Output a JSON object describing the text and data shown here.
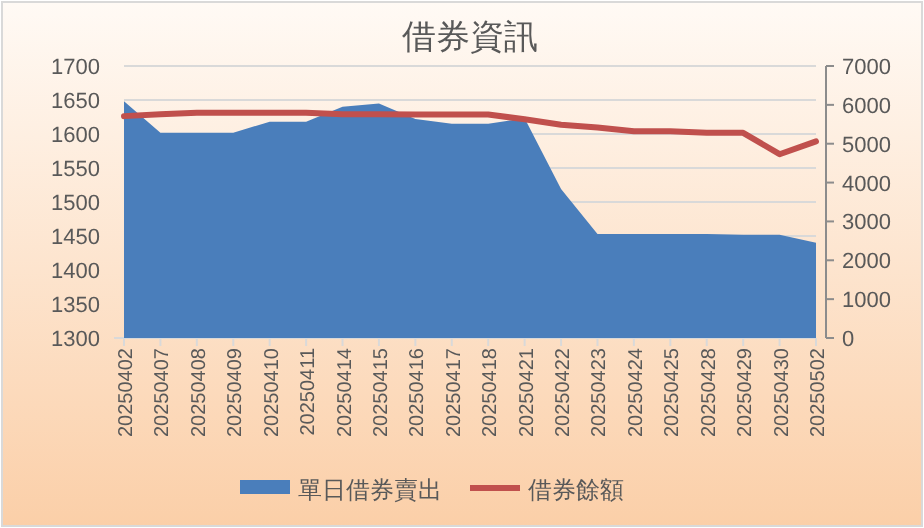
{
  "chart_data": {
    "type": "area",
    "title": "借券資訊",
    "categories": [
      "20250402",
      "20250407",
      "20250408",
      "20250409",
      "20250410",
      "20250411",
      "20250414",
      "20250415",
      "20250416",
      "20250417",
      "20250418",
      "20250421",
      "20250422",
      "20250423",
      "20250424",
      "20250425",
      "20250428",
      "20250429",
      "20250430",
      "20250502"
    ],
    "series": [
      {
        "name": "單日借券賣出",
        "color": "#4a7ebb",
        "values": [
          1648,
          1602,
          1602,
          1602,
          1618,
          1618,
          1640,
          1645,
          1622,
          1615,
          1615,
          1623,
          1519,
          1453,
          1453,
          1453,
          1453,
          1452,
          1452,
          1440
        ]
      },
      {
        "name": "借券餘額",
        "type": "line",
        "axis": "y2",
        "color": "#c0504d",
        "values": [
          5710,
          5760,
          5800,
          5800,
          5800,
          5800,
          5760,
          5760,
          5750,
          5750,
          5750,
          5630,
          5490,
          5420,
          5320,
          5320,
          5280,
          5280,
          4730,
          5060
        ]
      }
    ],
    "ylim": [
      1300,
      1700
    ],
    "yticks": [
      1300,
      1350,
      1400,
      1450,
      1500,
      1550,
      1600,
      1650,
      1700
    ],
    "y2lim": [
      0,
      7000
    ],
    "y2ticks": [
      0,
      1000,
      2000,
      3000,
      4000,
      5000,
      6000,
      7000
    ],
    "grid": "y",
    "legend": "bottom"
  }
}
